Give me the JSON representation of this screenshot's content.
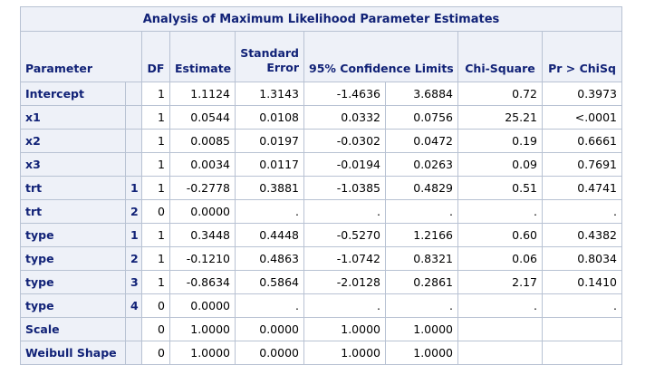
{
  "table": {
    "title": "Analysis of Maximum Likelihood Parameter Estimates",
    "headers": {
      "parameter": "Parameter",
      "df": "DF",
      "estimate": "Estimate",
      "std_error_1": "Standard",
      "std_error_2": "Error",
      "ci": "95% Confidence Limits",
      "chisq": "Chi-Square",
      "pr": "Pr > ChiSq"
    },
    "rows": [
      {
        "param": "Intercept",
        "level": "",
        "df": "1",
        "est": "1.1124",
        "se": "1.3143",
        "lo": "-1.4636",
        "hi": "3.6884",
        "chi": "0.72",
        "p": "0.3973"
      },
      {
        "param": "x1",
        "level": "",
        "df": "1",
        "est": "0.0544",
        "se": "0.0108",
        "lo": "0.0332",
        "hi": "0.0756",
        "chi": "25.21",
        "p": "<.0001"
      },
      {
        "param": "x2",
        "level": "",
        "df": "1",
        "est": "0.0085",
        "se": "0.0197",
        "lo": "-0.0302",
        "hi": "0.0472",
        "chi": "0.19",
        "p": "0.6661"
      },
      {
        "param": "x3",
        "level": "",
        "df": "1",
        "est": "0.0034",
        "se": "0.0117",
        "lo": "-0.0194",
        "hi": "0.0263",
        "chi": "0.09",
        "p": "0.7691"
      },
      {
        "param": "trt",
        "level": "1",
        "df": "1",
        "est": "-0.2778",
        "se": "0.3881",
        "lo": "-1.0385",
        "hi": "0.4829",
        "chi": "0.51",
        "p": "0.4741"
      },
      {
        "param": "trt",
        "level": "2",
        "df": "0",
        "est": "0.0000",
        "se": ".",
        "lo": ".",
        "hi": ".",
        "chi": ".",
        "p": "."
      },
      {
        "param": "type",
        "level": "1",
        "df": "1",
        "est": "0.3448",
        "se": "0.4448",
        "lo": "-0.5270",
        "hi": "1.2166",
        "chi": "0.60",
        "p": "0.4382"
      },
      {
        "param": "type",
        "level": "2",
        "df": "1",
        "est": "-0.1210",
        "se": "0.4863",
        "lo": "-1.0742",
        "hi": "0.8321",
        "chi": "0.06",
        "p": "0.8034"
      },
      {
        "param": "type",
        "level": "3",
        "df": "1",
        "est": "-0.8634",
        "se": "0.5864",
        "lo": "-2.0128",
        "hi": "0.2861",
        "chi": "2.17",
        "p": "0.1410"
      },
      {
        "param": "type",
        "level": "4",
        "df": "0",
        "est": "0.0000",
        "se": ".",
        "lo": ".",
        "hi": ".",
        "chi": ".",
        "p": "."
      },
      {
        "param": "Scale",
        "level": "",
        "df": "0",
        "est": "1.0000",
        "se": "0.0000",
        "lo": "1.0000",
        "hi": "1.0000",
        "chi": "",
        "p": ""
      },
      {
        "param": "Weibull Shape",
        "level": "",
        "df": "0",
        "est": "1.0000",
        "se": "0.0000",
        "lo": "1.0000",
        "hi": "1.0000",
        "chi": "",
        "p": ""
      }
    ]
  }
}
